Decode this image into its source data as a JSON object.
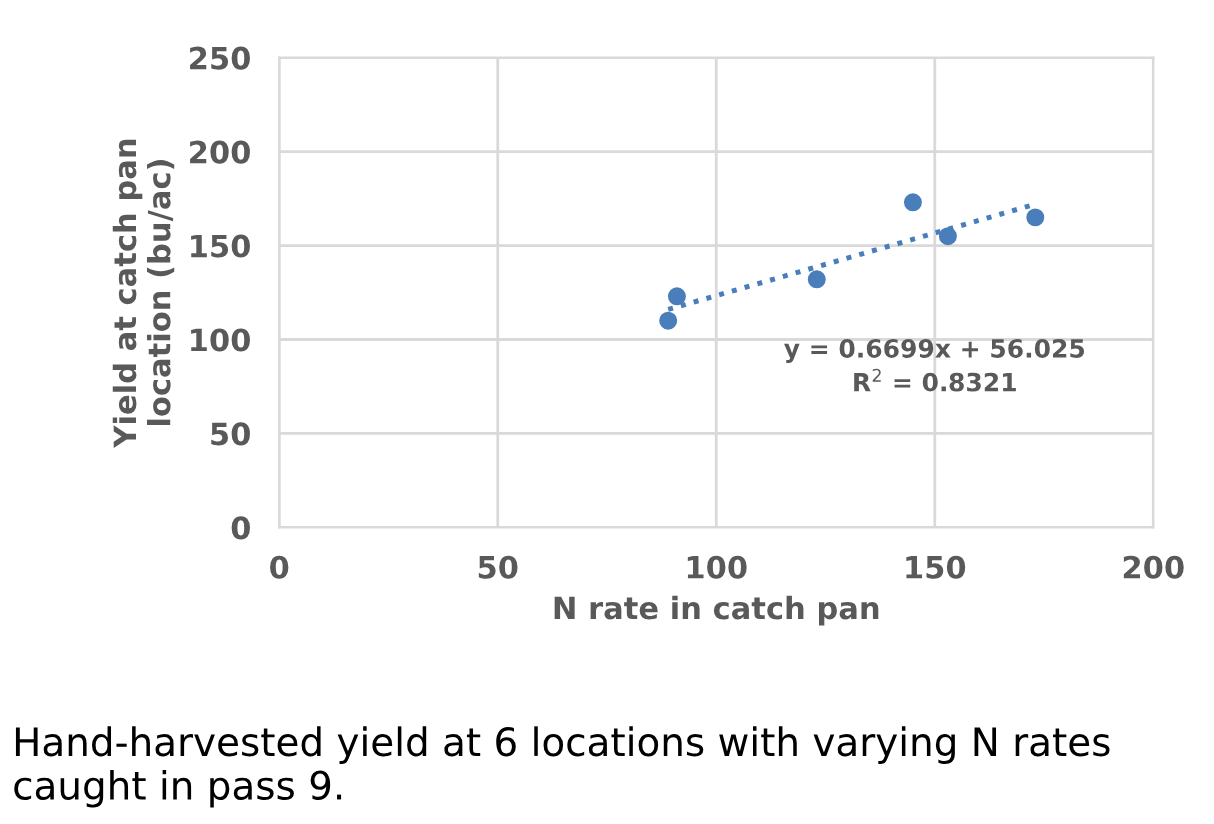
{
  "chart_data": {
    "type": "scatter",
    "xlabel": "N rate in catch pan",
    "ylabel": "Yield at catch pan\nlocation (bu/ac)",
    "series": [
      {
        "color": "#4a7ebb",
        "x": [
          89,
          91,
          123,
          145,
          153,
          173
        ],
        "values": [
          110,
          123,
          132,
          173,
          155,
          165
        ],
        "marker": "circle"
      },
      {
        "type": "line",
        "color": "#4a7ebb",
        "x": [
          89,
          173
        ],
        "values": [
          116,
          172
        ],
        "line_style": "dotted"
      }
    ],
    "annotations": [
      "y = 0.6699x + 56.025\nR$^{2}$ = 0.8321",
      "Hand-harvested yield at 6 locations with varying N rates caught in pass 9."
    ],
    "xlim": [
      0,
      200
    ],
    "ylim": [
      0,
      250
    ],
    "xticks": [
      0,
      50,
      100,
      150,
      200
    ],
    "yticks": [
      0,
      50,
      100,
      150,
      200,
      250
    ],
    "grid": true
  }
}
